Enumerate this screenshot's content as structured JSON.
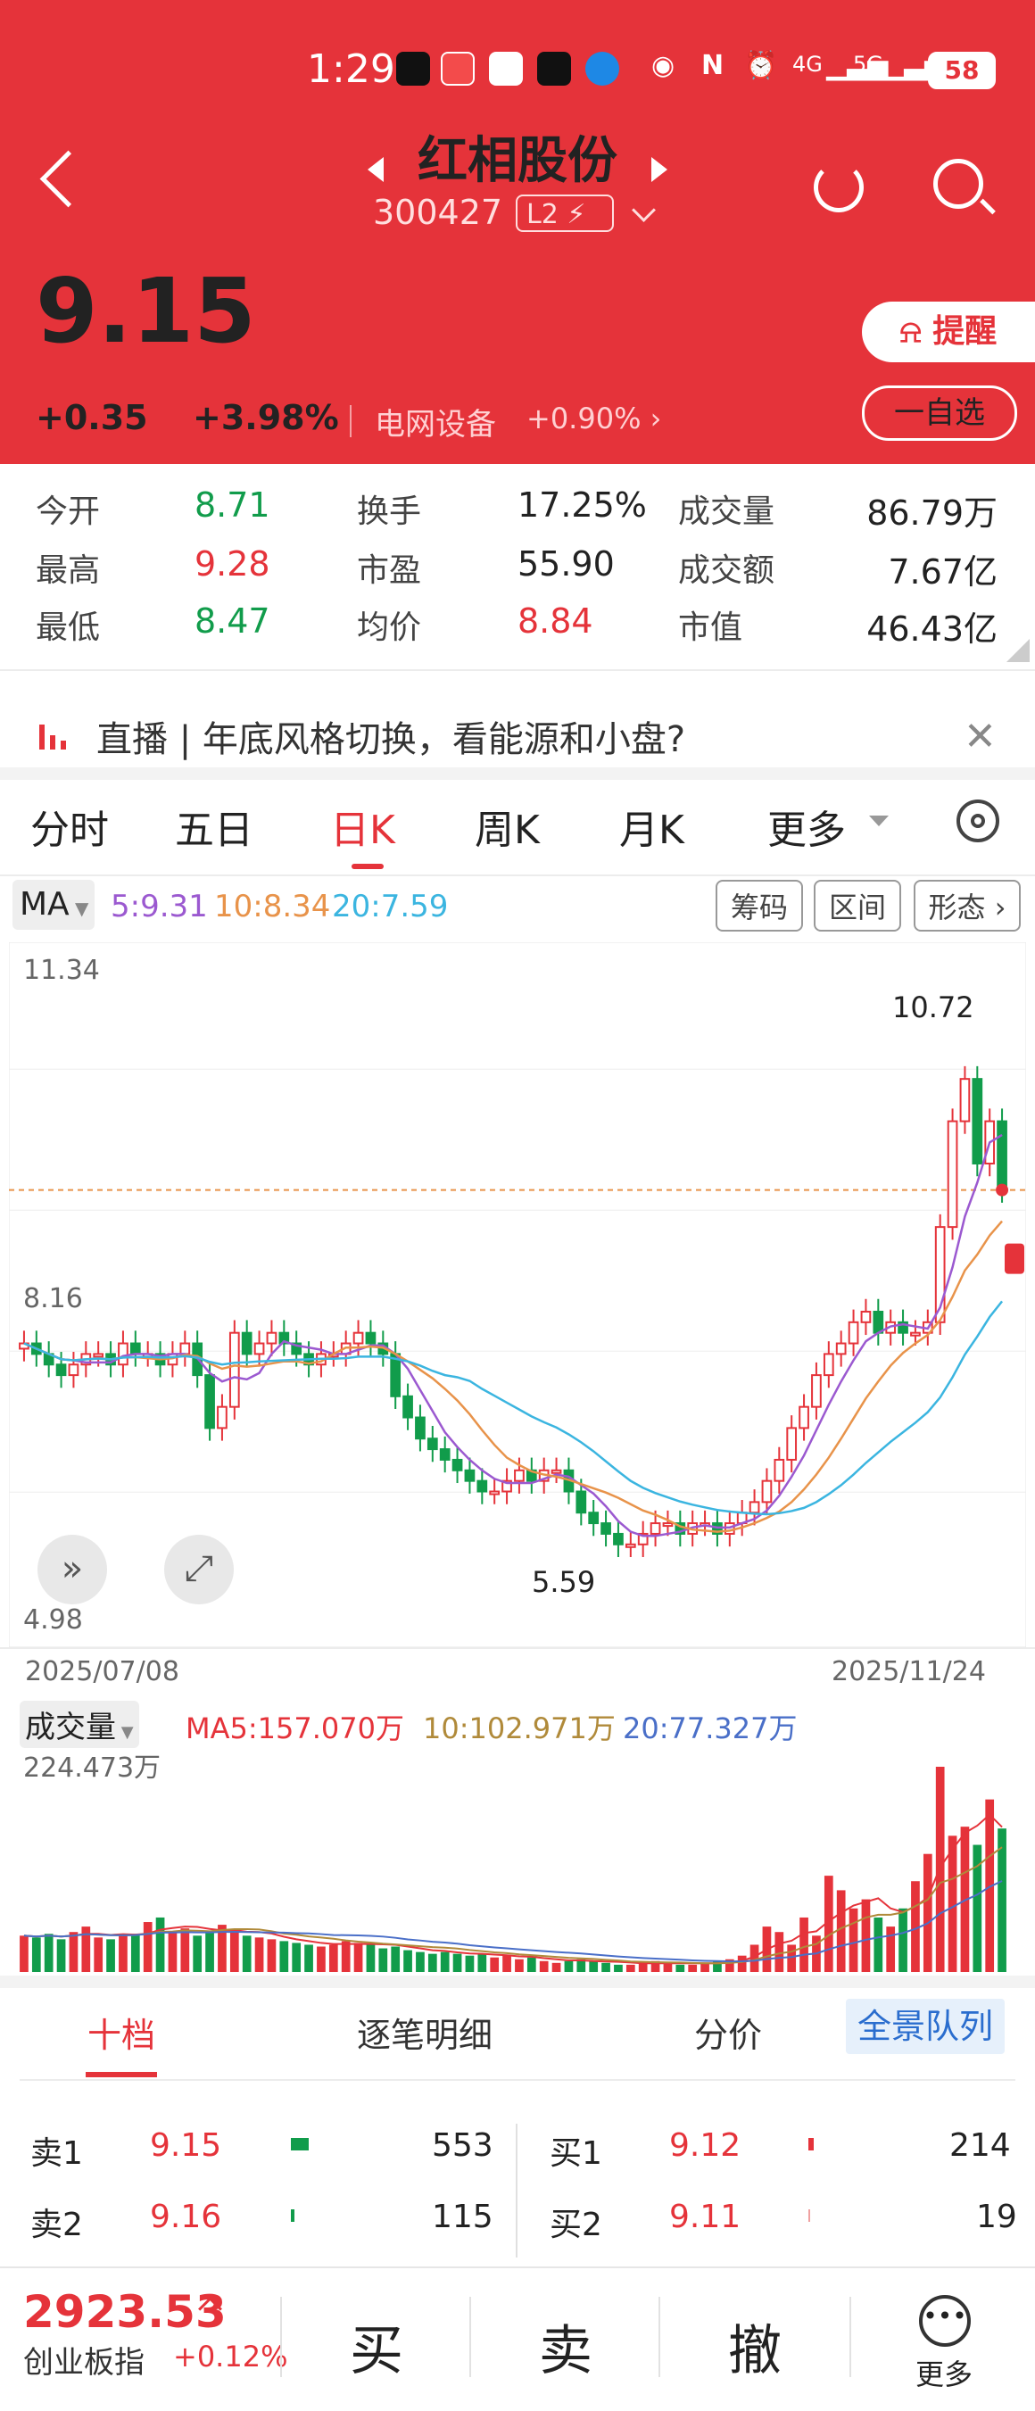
{
  "status_bar": {
    "time": "1:29",
    "signal1": "4G",
    "signal2": "5G",
    "battery": "58"
  },
  "header": {
    "title": "红相股份",
    "code": "300427",
    "badge": "L2",
    "price": "9.15",
    "change": "+0.35",
    "change_pct": "+3.98%",
    "sector": "电网设备",
    "sector_pct": "+0.90%",
    "alert_label": "提醒",
    "watch_label": "一自选"
  },
  "stats": [
    {
      "label": "今开",
      "value": "8.71",
      "color": "green"
    },
    {
      "label": "换手",
      "value": "17.25%",
      "color": "black"
    },
    {
      "label": "成交量",
      "value": "86.79万",
      "color": "black"
    },
    {
      "label": "最高",
      "value": "9.28",
      "color": "red"
    },
    {
      "label": "市盈",
      "value": "55.90",
      "color": "black"
    },
    {
      "label": "成交额",
      "value": "7.67亿",
      "color": "black"
    },
    {
      "label": "最低",
      "value": "8.47",
      "color": "green"
    },
    {
      "label": "均价",
      "value": "8.84",
      "color": "red"
    },
    {
      "label": "市值",
      "value": "46.43亿",
      "color": "black"
    }
  ],
  "banner": {
    "text": "直播 | 年底风格切换，看能源和小盘?"
  },
  "tabs": [
    "分时",
    "五日",
    "日K",
    "周K",
    "月K",
    "更多"
  ],
  "active_tab": "日K",
  "ma_row": {
    "button": "MA",
    "ma5": "5:9.31",
    "ma10": "10:8.34",
    "ma20": "20:7.59",
    "tags": [
      "筹码",
      "区间",
      "形态"
    ]
  },
  "chart_data": {
    "type": "candlestick",
    "y_ticks": [
      "11.34",
      "8.16",
      "4.98"
    ],
    "ylim": [
      4.98,
      11.34
    ],
    "high_label": "10.72",
    "low_label": "5.59",
    "current_price_line": 9.15,
    "date_start": "2025/07/08",
    "date_end": "2025/11/24",
    "closes": [
      7.7,
      7.6,
      7.5,
      7.4,
      7.5,
      7.6,
      7.6,
      7.5,
      7.7,
      7.6,
      7.6,
      7.5,
      7.6,
      7.7,
      7.4,
      6.9,
      7.1,
      7.8,
      7.6,
      7.7,
      7.8,
      7.7,
      7.6,
      7.5,
      7.6,
      7.6,
      7.7,
      7.8,
      7.7,
      7.6,
      7.2,
      7.0,
      6.8,
      6.7,
      6.6,
      6.5,
      6.4,
      6.3,
      6.3,
      6.4,
      6.5,
      6.4,
      6.5,
      6.5,
      6.3,
      6.1,
      6.0,
      5.9,
      5.8,
      5.8,
      5.9,
      6.0,
      6.0,
      5.9,
      6.0,
      6.0,
      5.9,
      6.0,
      6.1,
      6.2,
      6.4,
      6.6,
      6.9,
      7.1,
      7.4,
      7.6,
      7.7,
      7.9,
      8.0,
      7.8,
      7.9,
      7.8,
      7.8,
      7.9,
      8.8,
      9.8,
      10.2,
      9.4,
      9.8,
      9.15
    ],
    "ma_values": {
      "MA5": "9.31",
      "MA10": "8.34",
      "MA20": "7.59"
    },
    "colors": {
      "up": "#e5333a",
      "down": "#119c4b",
      "ma5": "#9b59d0",
      "ma10": "#e8934a",
      "ma20": "#3bb5e0"
    }
  },
  "volume": {
    "button": "成交量",
    "max_label": "224.473万",
    "ma5": "MA5:157.070万",
    "ma10": "10:102.971万",
    "ma20": "20:77.327万",
    "values": [
      40,
      38,
      42,
      36,
      44,
      50,
      38,
      36,
      40,
      42,
      55,
      60,
      45,
      48,
      40,
      44,
      52,
      46,
      40,
      38,
      36,
      34,
      32,
      30,
      28,
      30,
      34,
      32,
      30,
      26,
      28,
      24,
      22,
      20,
      22,
      20,
      18,
      20,
      16,
      18,
      14,
      16,
      12,
      10,
      12,
      14,
      12,
      10,
      8,
      8,
      10,
      12,
      10,
      8,
      8,
      10,
      12,
      14,
      18,
      30,
      50,
      44,
      30,
      60,
      40,
      106,
      90,
      70,
      80,
      60,
      50,
      70,
      100,
      130,
      226,
      150,
      160,
      140,
      190,
      158
    ]
  },
  "depth_tabs": [
    "十档",
    "逐笔明细",
    "分价",
    "全景队列"
  ],
  "quotes": {
    "sell": [
      {
        "label": "卖1",
        "price": "9.15",
        "vol": "553"
      },
      {
        "label": "卖2",
        "price": "9.16",
        "vol": "115"
      }
    ],
    "buy": [
      {
        "label": "买1",
        "price": "9.12",
        "vol": "214"
      },
      {
        "label": "买2",
        "price": "9.11",
        "vol": "19"
      }
    ]
  },
  "bottom_bar": {
    "index_value": "2923.53",
    "index_name": "创业板指",
    "index_pct": "+0.12%",
    "buy": "买",
    "sell": "卖",
    "cancel": "撤",
    "more": "更多"
  }
}
